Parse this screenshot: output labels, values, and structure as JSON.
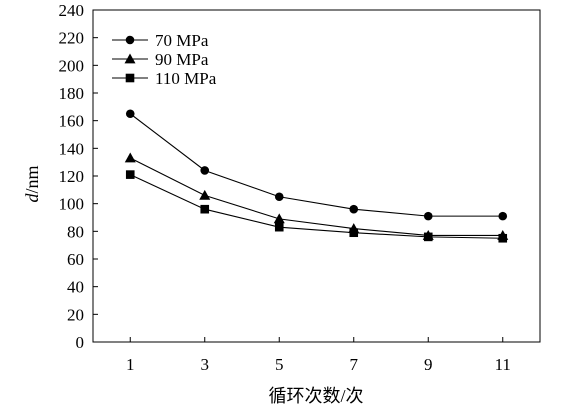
{
  "chart_data": {
    "type": "line",
    "x": [
      1,
      3,
      5,
      7,
      9,
      11
    ],
    "xticks": [
      "1",
      "3",
      "5",
      "7",
      "9",
      "11"
    ],
    "yticks": [
      "0",
      "20",
      "40",
      "60",
      "80",
      "100",
      "120",
      "140",
      "160",
      "180",
      "200",
      "220",
      "240"
    ],
    "ylim": [
      0,
      240
    ],
    "xlabel": "循环次数/次",
    "ylabel_italic": "d",
    "ylabel_rest": "/nm",
    "grid": false,
    "legend": "top-left",
    "series": [
      {
        "name": "70 MPa",
        "marker": "circle",
        "values": [
          165,
          124,
          105,
          96,
          91,
          91
        ]
      },
      {
        "name": "90 MPa",
        "marker": "triangle",
        "values": [
          133,
          106,
          89,
          82,
          77,
          77
        ]
      },
      {
        "name": "110 MPa",
        "marker": "square",
        "values": [
          121,
          96,
          83,
          79,
          76,
          75
        ]
      }
    ],
    "line_color": "#000000",
    "marker_color": "#000000"
  }
}
